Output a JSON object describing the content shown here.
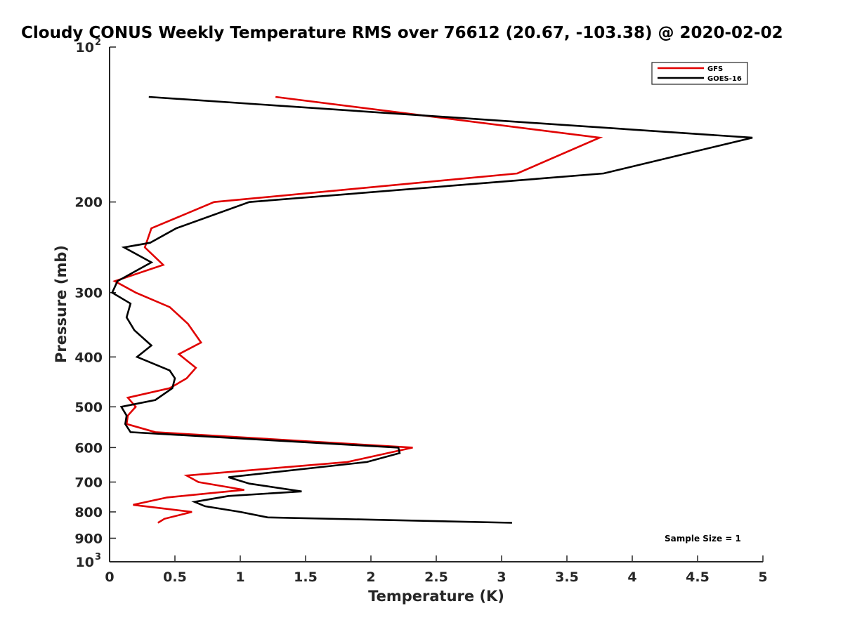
{
  "chart_data": {
    "type": "line",
    "title": "Cloudy CONUS Weekly Temperature RMS over 76612 (20.67, -103.38) @ 2020-02-02",
    "xlabel": "Temperature (K)",
    "ylabel": "Pressure (mb)",
    "xlim": [
      0,
      5
    ],
    "ylim": [
      100,
      1000
    ],
    "yscale": "log",
    "y_reversed": true,
    "x_ticks": [
      "0",
      "0.5",
      "1",
      "1.5",
      "2",
      "2.5",
      "3",
      "3.5",
      "4",
      "4.5",
      "5"
    ],
    "x_tick_values": [
      0,
      0.5,
      1,
      1.5,
      2,
      2.5,
      3,
      3.5,
      4,
      4.5,
      5
    ],
    "y_ticks": [
      {
        "value": 100,
        "label": "10",
        "exp": "2"
      },
      {
        "value": 200,
        "label": "200",
        "exp": ""
      },
      {
        "value": 300,
        "label": "300",
        "exp": ""
      },
      {
        "value": 400,
        "label": "400",
        "exp": ""
      },
      {
        "value": 500,
        "label": "500",
        "exp": ""
      },
      {
        "value": 600,
        "label": "600",
        "exp": ""
      },
      {
        "value": 700,
        "label": "700",
        "exp": ""
      },
      {
        "value": 800,
        "label": "800",
        "exp": ""
      },
      {
        "value": 900,
        "label": "900",
        "exp": ""
      },
      {
        "value": 1000,
        "label": "10",
        "exp": "3"
      }
    ],
    "legend_position": "top-right",
    "annotation": "Sample Size = 1",
    "series": [
      {
        "name": "GFS",
        "color": "#e00000",
        "points": [
          [
            1.27,
            125
          ],
          [
            3.75,
            150
          ],
          [
            3.12,
            176
          ],
          [
            0.8,
            200
          ],
          [
            0.32,
            225
          ],
          [
            0.27,
            245
          ],
          [
            0.41,
            265
          ],
          [
            0.04,
            285
          ],
          [
            0.2,
            300
          ],
          [
            0.46,
            320
          ],
          [
            0.6,
            345
          ],
          [
            0.7,
            375
          ],
          [
            0.53,
            395
          ],
          [
            0.66,
            420
          ],
          [
            0.59,
            440
          ],
          [
            0.46,
            460
          ],
          [
            0.14,
            480
          ],
          [
            0.2,
            500
          ],
          [
            0.14,
            520
          ],
          [
            0.13,
            540
          ],
          [
            0.35,
            560
          ],
          [
            2.32,
            600
          ],
          [
            1.82,
            640
          ],
          [
            0.59,
            680
          ],
          [
            0.68,
            700
          ],
          [
            1.03,
            725
          ],
          [
            0.44,
            750
          ],
          [
            0.18,
            775
          ],
          [
            0.63,
            800
          ],
          [
            0.42,
            825
          ],
          [
            0.37,
            840
          ]
        ]
      },
      {
        "name": "GOES-16",
        "color": "#000000",
        "points": [
          [
            0.3,
            125
          ],
          [
            4.92,
            150
          ],
          [
            3.78,
            176
          ],
          [
            1.07,
            200
          ],
          [
            0.51,
            225
          ],
          [
            0.31,
            240
          ],
          [
            0.11,
            245
          ],
          [
            0.32,
            262
          ],
          [
            0.06,
            285
          ],
          [
            0.02,
            300
          ],
          [
            0.16,
            315
          ],
          [
            0.13,
            335
          ],
          [
            0.19,
            355
          ],
          [
            0.32,
            380
          ],
          [
            0.21,
            400
          ],
          [
            0.46,
            425
          ],
          [
            0.5,
            440
          ],
          [
            0.48,
            460
          ],
          [
            0.35,
            485
          ],
          [
            0.09,
            500
          ],
          [
            0.13,
            520
          ],
          [
            0.12,
            540
          ],
          [
            0.16,
            560
          ],
          [
            2.21,
            600
          ],
          [
            2.22,
            615
          ],
          [
            1.97,
            640
          ],
          [
            0.91,
            685
          ],
          [
            1.07,
            705
          ],
          [
            1.47,
            730
          ],
          [
            0.91,
            745
          ],
          [
            0.65,
            765
          ],
          [
            0.73,
            780
          ],
          [
            1.0,
            800
          ],
          [
            1.21,
            820
          ],
          [
            3.08,
            840
          ]
        ]
      }
    ]
  }
}
